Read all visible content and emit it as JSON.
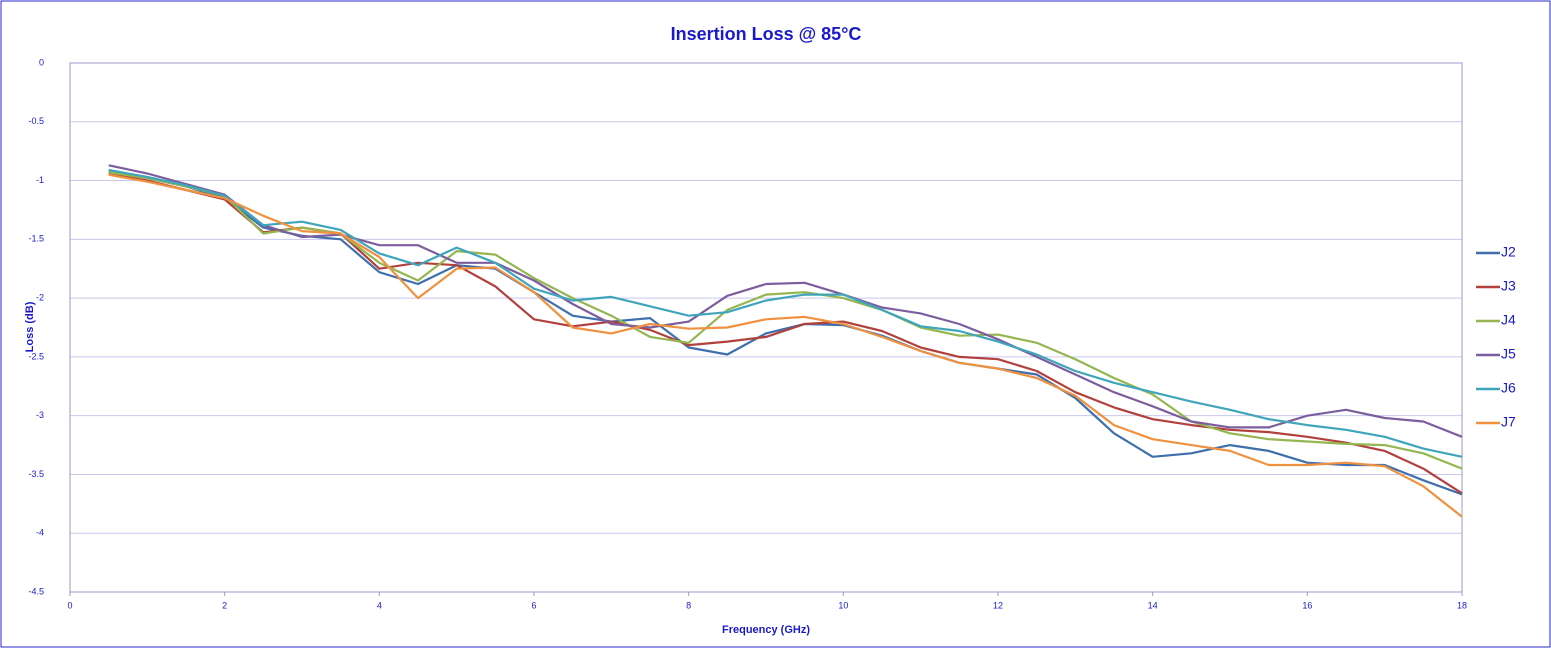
{
  "chart_data": {
    "type": "line",
    "title": "Insertion Loss @ 85°C",
    "xlabel": "Frequency (GHz)",
    "ylabel": "Loss (dB)",
    "x": [
      0.5,
      1,
      1.5,
      2,
      2.5,
      3,
      3.5,
      4,
      4.5,
      5,
      5.5,
      6,
      6.5,
      7,
      7.5,
      8,
      8.5,
      9,
      9.5,
      10,
      10.5,
      11,
      11.5,
      12,
      12.5,
      13,
      13.5,
      14,
      14.5,
      15,
      15.5,
      16,
      16.5,
      17,
      17.5,
      18
    ],
    "series": [
      {
        "name": "J2",
        "color": "#3f6fac",
        "values": [
          -0.92,
          -0.98,
          -1.05,
          -1.15,
          -1.4,
          -1.47,
          -1.5,
          -1.78,
          -1.88,
          -1.72,
          -1.75,
          -1.95,
          -2.15,
          -2.2,
          -2.17,
          -2.42,
          -2.48,
          -2.3,
          -2.22,
          -2.23,
          -2.32,
          -2.45,
          -2.55,
          -2.6,
          -2.65,
          -2.85,
          -3.15,
          -3.35,
          -3.32,
          -3.25,
          -3.3,
          -3.4,
          -3.42,
          -3.42,
          -3.55,
          -3.67
        ]
      },
      {
        "name": "J3",
        "color": "#b2403c",
        "values": [
          -0.94,
          -1.0,
          -1.08,
          -1.16,
          -1.44,
          -1.4,
          -1.45,
          -1.75,
          -1.7,
          -1.72,
          -1.9,
          -2.18,
          -2.24,
          -2.2,
          -2.27,
          -2.4,
          -2.37,
          -2.33,
          -2.22,
          -2.2,
          -2.28,
          -2.42,
          -2.5,
          -2.52,
          -2.62,
          -2.8,
          -2.93,
          -3.03,
          -3.08,
          -3.12,
          -3.14,
          -3.18,
          -3.23,
          -3.3,
          -3.45,
          -3.66
        ]
      },
      {
        "name": "J4",
        "color": "#94b650",
        "values": [
          -0.93,
          -0.98,
          -1.05,
          -1.13,
          -1.45,
          -1.4,
          -1.45,
          -1.7,
          -1.85,
          -1.6,
          -1.63,
          -1.83,
          -2.0,
          -2.15,
          -2.33,
          -2.38,
          -2.1,
          -1.97,
          -1.95,
          -2.0,
          -2.1,
          -2.25,
          -2.32,
          -2.31,
          -2.38,
          -2.52,
          -2.68,
          -2.82,
          -3.05,
          -3.15,
          -3.2,
          -3.22,
          -3.24,
          -3.25,
          -3.32,
          -3.45
        ]
      },
      {
        "name": "J5",
        "color": "#7c5e9e",
        "values": [
          -0.87,
          -0.94,
          -1.03,
          -1.12,
          -1.38,
          -1.48,
          -1.46,
          -1.55,
          -1.55,
          -1.7,
          -1.7,
          -1.85,
          -2.05,
          -2.22,
          -2.25,
          -2.2,
          -1.98,
          -1.88,
          -1.87,
          -1.97,
          -2.08,
          -2.13,
          -2.22,
          -2.35,
          -2.5,
          -2.65,
          -2.8,
          -2.92,
          -3.05,
          -3.1,
          -3.1,
          -3.0,
          -2.95,
          -3.02,
          -3.05,
          -3.18
        ]
      },
      {
        "name": "J6",
        "color": "#3fa5bb",
        "values": [
          -0.91,
          -0.97,
          -1.04,
          -1.13,
          -1.38,
          -1.35,
          -1.42,
          -1.62,
          -1.72,
          -1.57,
          -1.7,
          -1.92,
          -2.02,
          -1.99,
          -2.07,
          -2.15,
          -2.12,
          -2.02,
          -1.97,
          -1.97,
          -2.1,
          -2.24,
          -2.28,
          -2.37,
          -2.48,
          -2.62,
          -2.72,
          -2.8,
          -2.88,
          -2.95,
          -3.03,
          -3.08,
          -3.12,
          -3.18,
          -3.28,
          -3.35
        ]
      },
      {
        "name": "J7",
        "color": "#f0913f",
        "values": [
          -0.95,
          -1.01,
          -1.08,
          -1.15,
          -1.3,
          -1.43,
          -1.45,
          -1.65,
          -2.0,
          -1.75,
          -1.74,
          -1.95,
          -2.25,
          -2.3,
          -2.22,
          -2.26,
          -2.25,
          -2.18,
          -2.16,
          -2.22,
          -2.33,
          -2.45,
          -2.55,
          -2.6,
          -2.68,
          -2.83,
          -3.08,
          -3.2,
          -3.25,
          -3.3,
          -3.42,
          -3.42,
          -3.4,
          -3.43,
          -3.6,
          -3.86
        ]
      }
    ],
    "xlim": [
      0,
      18
    ],
    "xticks": [
      0,
      2,
      4,
      6,
      8,
      10,
      12,
      14,
      16,
      18
    ],
    "ylim": [
      -4.5,
      0
    ],
    "yticks": [
      0,
      -0.5,
      -1,
      -1.5,
      -2,
      -2.5,
      -3,
      -3.5,
      -4,
      -4.5
    ],
    "grid": true,
    "legend": "right"
  }
}
